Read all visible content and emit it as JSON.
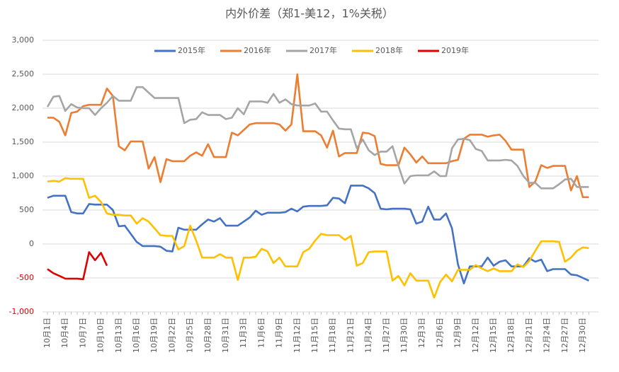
{
  "chart_data": {
    "type": "line",
    "title": "内外价差（郑1-美12，1%关税）",
    "categories": [
      "10月1日",
      null,
      null,
      "10月4日",
      null,
      null,
      "10月7日",
      null,
      null,
      "10月10日",
      null,
      null,
      "10月13日",
      null,
      null,
      "10月16日",
      null,
      null,
      "10月19日",
      null,
      null,
      "10月22日",
      null,
      null,
      "10月25日",
      null,
      null,
      "10月28日",
      null,
      null,
      "10月31日",
      null,
      null,
      "11月3日",
      null,
      null,
      "11月6日",
      null,
      null,
      "11月9日",
      null,
      null,
      "11月12日",
      null,
      null,
      "11月15日",
      null,
      null,
      "11月18日",
      null,
      null,
      "11月21日",
      null,
      null,
      "11月24日",
      null,
      null,
      "11月27日",
      null,
      null,
      "11月30日",
      null,
      null,
      "12月3日",
      null,
      null,
      "12月6日",
      null,
      null,
      "12月9日",
      null,
      null,
      "12月12日",
      null,
      null,
      "12月15日",
      null,
      null,
      "12月18日",
      null,
      null,
      "12月21日",
      null,
      null,
      "12月24日",
      null,
      null,
      "12月27日",
      null,
      null,
      "12月30日",
      null
    ],
    "series": [
      {
        "name": "2015年",
        "color": "#4472c4",
        "values": [
          680,
          710,
          710,
          710,
          470,
          450,
          450,
          590,
          580,
          580,
          580,
          500,
          260,
          270,
          150,
          30,
          -30,
          -30,
          -30,
          -40,
          -100,
          -110,
          240,
          210,
          210,
          210,
          290,
          360,
          330,
          380,
          270,
          270,
          270,
          330,
          390,
          490,
          430,
          460,
          460,
          460,
          470,
          520,
          480,
          550,
          560,
          560,
          560,
          570,
          680,
          670,
          600,
          860,
          860,
          860,
          820,
          750,
          520,
          510,
          520,
          520,
          520,
          510,
          300,
          330,
          550,
          360,
          360,
          450,
          230,
          -300,
          -580,
          -330,
          -330,
          -330,
          -200,
          -320,
          -260,
          -240,
          -330,
          -330,
          -330,
          -210,
          -260,
          -230,
          -400,
          -370,
          -370,
          -370,
          -450,
          -460,
          -500,
          -540
        ]
      },
      {
        "name": "2016年",
        "color": "#ed7d31",
        "values": [
          1860,
          1860,
          1800,
          1600,
          1930,
          1950,
          2030,
          2050,
          2050,
          2050,
          2290,
          2180,
          1440,
          1380,
          1510,
          1510,
          1510,
          1110,
          1280,
          910,
          1250,
          1220,
          1220,
          1220,
          1300,
          1350,
          1300,
          1470,
          1280,
          1280,
          1280,
          1640,
          1600,
          1680,
          1760,
          1780,
          1780,
          1780,
          1780,
          1760,
          1670,
          1760,
          2500,
          1660,
          1660,
          1660,
          1600,
          1420,
          1670,
          1290,
          1340,
          1340,
          1340,
          1640,
          1630,
          1590,
          1180,
          1160,
          1160,
          1160,
          1420,
          1320,
          1200,
          1290,
          1190,
          1190,
          1190,
          1190,
          1220,
          1240,
          1550,
          1610,
          1610,
          1610,
          1580,
          1600,
          1610,
          1520,
          1390,
          1390,
          1390,
          840,
          920,
          1160,
          1120,
          1150,
          1150,
          1150,
          790,
          1000,
          690,
          690
        ]
      },
      {
        "name": "2017年",
        "color": "#a5a5a5",
        "values": [
          2020,
          2170,
          2180,
          1960,
          2060,
          2010,
          2000,
          2000,
          1900,
          2000,
          2080,
          2180,
          2110,
          2110,
          2110,
          2310,
          2310,
          2230,
          2150,
          2150,
          2150,
          2150,
          2150,
          1780,
          1830,
          1840,
          1940,
          1900,
          1900,
          1900,
          1840,
          1860,
          2000,
          1910,
          2100,
          2100,
          2100,
          2080,
          2210,
          2080,
          2130,
          2060,
          2040,
          2040,
          2040,
          2070,
          1950,
          1950,
          1820,
          1700,
          1690,
          1690,
          1410,
          1540,
          1380,
          1310,
          1360,
          1360,
          1440,
          1150,
          890,
          1000,
          1010,
          1010,
          1010,
          1070,
          1000,
          1000,
          1410,
          1540,
          1550,
          1530,
          1400,
          1370,
          1230,
          1230,
          1230,
          1240,
          1230,
          1150,
          1000,
          900,
          900,
          820,
          820,
          820,
          880,
          950,
          960,
          840,
          840,
          840
        ]
      },
      {
        "name": "2018年",
        "color": "#ffc000",
        "values": [
          920,
          930,
          920,
          970,
          960,
          960,
          960,
          680,
          710,
          620,
          450,
          430,
          430,
          420,
          420,
          300,
          380,
          330,
          230,
          130,
          120,
          120,
          -80,
          -30,
          270,
          50,
          -200,
          -200,
          -200,
          -150,
          -200,
          -200,
          -530,
          -200,
          -200,
          -190,
          -70,
          -110,
          -280,
          -200,
          -330,
          -330,
          -330,
          -120,
          -70,
          50,
          150,
          130,
          130,
          130,
          60,
          120,
          -320,
          -280,
          -120,
          -110,
          -110,
          -110,
          -540,
          -470,
          -610,
          -430,
          -540,
          -540,
          -540,
          -790,
          -560,
          -450,
          -550,
          -380,
          -380,
          -380,
          -310,
          -360,
          -400,
          -360,
          -400,
          -400,
          -400,
          -300,
          -340,
          -250,
          -100,
          40,
          40,
          40,
          30,
          -260,
          -200,
          -100,
          -50,
          -60
        ]
      },
      {
        "name": "2019年",
        "color": "#e00000",
        "values": [
          -370,
          -430,
          -470,
          -510,
          -510,
          -510,
          -520,
          -120,
          -240,
          -130,
          -320,
          null,
          null,
          null,
          null,
          null,
          null,
          null,
          null,
          null,
          null,
          null,
          null,
          null,
          null,
          null,
          null,
          null,
          null,
          null,
          null,
          null,
          null,
          null,
          null,
          null,
          null,
          null,
          null,
          null,
          null,
          null,
          null,
          null,
          null,
          null,
          null,
          null,
          null,
          null,
          null,
          null,
          null,
          null,
          null,
          null,
          null,
          null,
          null,
          null,
          null,
          null,
          null,
          null,
          null,
          null,
          null,
          null,
          null,
          null,
          null,
          null,
          null,
          null,
          null,
          null,
          null,
          null,
          null,
          null,
          null,
          null,
          null,
          null,
          null,
          null,
          null,
          null,
          null,
          null,
          null,
          null
        ]
      }
    ],
    "ylim": [
      -1000,
      3000
    ],
    "yticks": [
      {
        "value": -1000,
        "label": "-1,000"
      },
      -500,
      0,
      500,
      {
        "value": 1000,
        "label": "1,000"
      },
      {
        "value": 1500,
        "label": "1,500"
      },
      {
        "value": 2000,
        "label": "2,000"
      },
      {
        "value": 2500,
        "label": "2,500"
      },
      {
        "value": 3000,
        "label": "3,000"
      }
    ],
    "grid": true,
    "legend": "top"
  }
}
